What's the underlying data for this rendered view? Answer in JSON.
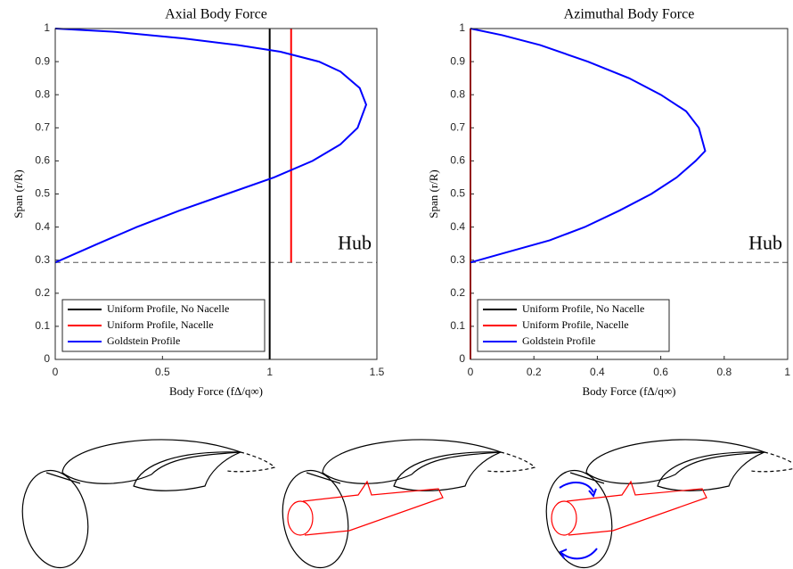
{
  "chart_data": [
    {
      "type": "line",
      "title": "Axial Body Force",
      "xlabel": "Body Force (fΔ/q∞)",
      "ylabel": "Span (r/R)",
      "xlim": [
        0,
        1.5
      ],
      "xticks": [
        0,
        0.5,
        1,
        1.5
      ],
      "ylim": [
        0,
        1
      ],
      "yticks": [
        0,
        0.1,
        0.2,
        0.3,
        0.4,
        0.5,
        0.6,
        0.7,
        0.8,
        0.9,
        1
      ],
      "reference_line": {
        "value": 0.293,
        "label": "Hub"
      },
      "legend": "lower left",
      "series": [
        {
          "name": "Uniform Profile, No Nacelle",
          "color": "#000000",
          "x": [
            1,
            1
          ],
          "values": [
            0,
            1
          ]
        },
        {
          "name": "Uniform Profile, Nacelle",
          "color": "#ff0000",
          "x": [
            1.1,
            1.1
          ],
          "values": [
            0.293,
            1
          ]
        },
        {
          "name": "Goldstein Profile",
          "color": "#0000ff",
          "x": [
            0,
            0.2,
            0.38,
            0.58,
            0.8,
            1.02,
            1.2,
            1.33,
            1.41,
            1.45,
            1.42,
            1.33,
            1.23,
            1.05,
            0.85,
            0.6,
            0.28,
            0
          ],
          "values": [
            0.293,
            0.35,
            0.4,
            0.45,
            0.5,
            0.55,
            0.6,
            0.65,
            0.7,
            0.77,
            0.82,
            0.87,
            0.9,
            0.93,
            0.95,
            0.97,
            0.99,
            1
          ]
        }
      ]
    },
    {
      "type": "line",
      "title": "Azimuthal Body Force",
      "xlabel": "Body Force (fΔ/q∞)",
      "ylabel": "Span (r/R)",
      "xlim": [
        0,
        1
      ],
      "xticks": [
        0,
        0.2,
        0.4,
        0.6,
        0.8,
        1
      ],
      "ylim": [
        0,
        1
      ],
      "yticks": [
        0,
        0.1,
        0.2,
        0.3,
        0.4,
        0.5,
        0.6,
        0.7,
        0.8,
        0.9,
        1
      ],
      "reference_line": {
        "value": 0.293,
        "label": "Hub"
      },
      "legend": "lower left",
      "series": [
        {
          "name": "Uniform Profile, No Nacelle",
          "color": "#000000",
          "x": [
            0,
            0
          ],
          "values": [
            0,
            1
          ]
        },
        {
          "name": "Uniform Profile, Nacelle",
          "color": "#ff0000",
          "x": [
            0,
            0
          ],
          "values": [
            0,
            1
          ]
        },
        {
          "name": "Goldstein Profile",
          "color": "#0000ff",
          "x": [
            0,
            0.1,
            0.25,
            0.36,
            0.47,
            0.57,
            0.65,
            0.71,
            0.74,
            0.72,
            0.68,
            0.6,
            0.5,
            0.37,
            0.22,
            0.1,
            0
          ],
          "values": [
            0.293,
            0.32,
            0.36,
            0.4,
            0.45,
            0.5,
            0.55,
            0.6,
            0.63,
            0.7,
            0.75,
            0.8,
            0.85,
            0.9,
            0.95,
            0.98,
            1
          ]
        }
      ]
    }
  ]
}
